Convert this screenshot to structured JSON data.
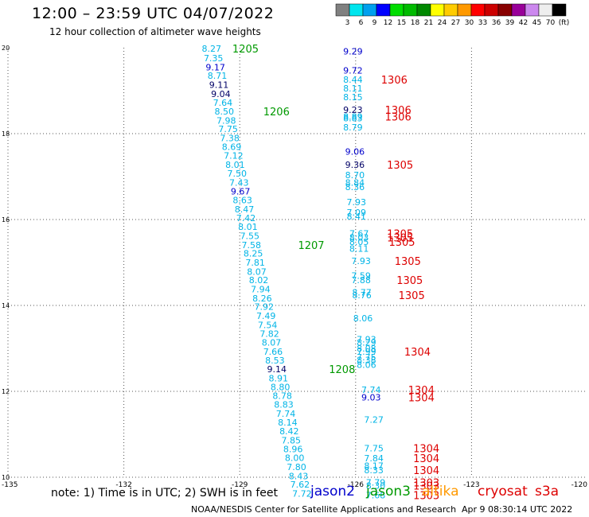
{
  "header": {
    "title": "12:00 – 23:59 UTC 04/07/2022",
    "subtitle": "12 hour collection of altimeter wave heights"
  },
  "colors": {
    "cyan": "#00b4e6",
    "blue": "#0000cc",
    "navy": "#000066",
    "green": "#009900",
    "red": "#dd0000",
    "orange": "#ff9900",
    "grid": "#555555"
  },
  "colorbar": {
    "labels": [
      "3",
      "6",
      "9",
      "12",
      "15",
      "18",
      "21",
      "24",
      "27",
      "30",
      "33",
      "36",
      "39",
      "42",
      "45",
      "70",
      "(ft)"
    ],
    "swatches": [
      "#808080",
      "#00e5ee",
      "#00a0ee",
      "#0000ff",
      "#00dd00",
      "#00bb00",
      "#008800",
      "#ffff00",
      "#ffcc00",
      "#ff9900",
      "#ff0000",
      "#cc0000",
      "#880000",
      "#990099",
      "#cc88ee",
      "#eeeeee",
      "#000000"
    ]
  },
  "footer": {
    "note": "note:  1) Time is in UTC; 2) SWH is in feet",
    "satellites": [
      {
        "name": "jason2",
        "color": "#0000cc"
      },
      {
        "name": "jason3",
        "color": "#009900"
      },
      {
        "name": "altika",
        "color": "#ff9900"
      },
      {
        "name": "cryosat",
        "color": "#dd0000"
      },
      {
        "name": "s3a",
        "color": "#dd0000"
      }
    ],
    "credit": "NOAA/NESDIS Center for Satellite Applications and Research",
    "timestamp": "Apr  9 08:30:14 UTC 2022"
  },
  "chart_data": {
    "type": "scatter",
    "title": "12:00 – 23:59 UTC 04/07/2022",
    "subtitle": "12 hour collection of altimeter wave heights",
    "xlim": [
      -135,
      -120
    ],
    "ylim": [
      10,
      20
    ],
    "x_ticks": [
      {
        "v": -135,
        "label": "-135"
      },
      {
        "v": -132,
        "label": "-132"
      },
      {
        "v": -129,
        "label": "-129"
      },
      {
        "v": -126,
        "label": "-126"
      },
      {
        "v": -123,
        "label": "-123"
      },
      {
        "v": -120,
        "label": "-120"
      }
    ],
    "y_ticks": [
      {
        "v": 10,
        "label": "10"
      },
      {
        "v": 12,
        "label": "12"
      },
      {
        "v": 14,
        "label": "14"
      },
      {
        "v": 16,
        "label": "16"
      },
      {
        "v": 18,
        "label": "18"
      },
      {
        "v": 20,
        "label": "20"
      }
    ],
    "grid": true,
    "points": [
      {
        "x": -129.73,
        "y": 19.98,
        "label": "8.27",
        "c": "cyan"
      },
      {
        "x": -129.68,
        "y": 19.76,
        "label": "7.35",
        "c": "cyan"
      },
      {
        "x": -129.63,
        "y": 19.55,
        "label": "9.17",
        "c": "blue"
      },
      {
        "x": -129.58,
        "y": 19.35,
        "label": "8.71",
        "c": "cyan"
      },
      {
        "x": -129.54,
        "y": 19.14,
        "label": "9.11",
        "c": "navy"
      },
      {
        "x": -129.49,
        "y": 18.93,
        "label": "9.04",
        "c": "navy"
      },
      {
        "x": -129.44,
        "y": 18.72,
        "label": "7.64",
        "c": "cyan"
      },
      {
        "x": -129.4,
        "y": 18.52,
        "label": "8.50",
        "c": "cyan"
      },
      {
        "x": -129.35,
        "y": 18.31,
        "label": "7.98",
        "c": "cyan"
      },
      {
        "x": -129.3,
        "y": 18.11,
        "label": "7.75",
        "c": "cyan"
      },
      {
        "x": -129.26,
        "y": 17.9,
        "label": "7.38",
        "c": "cyan"
      },
      {
        "x": -129.21,
        "y": 17.69,
        "label": "8.69",
        "c": "cyan"
      },
      {
        "x": -129.16,
        "y": 17.49,
        "label": "7.12",
        "c": "cyan"
      },
      {
        "x": -129.12,
        "y": 17.28,
        "label": "8.01",
        "c": "cyan"
      },
      {
        "x": -129.07,
        "y": 17.07,
        "label": "7.50",
        "c": "cyan"
      },
      {
        "x": -129.02,
        "y": 16.86,
        "label": "7.43",
        "c": "cyan"
      },
      {
        "x": -128.98,
        "y": 16.66,
        "label": "9.67",
        "c": "blue"
      },
      {
        "x": -128.93,
        "y": 16.45,
        "label": "8.63",
        "c": "cyan"
      },
      {
        "x": -128.88,
        "y": 16.24,
        "label": "8.47",
        "c": "cyan"
      },
      {
        "x": -128.84,
        "y": 16.04,
        "label": "7.42",
        "c": "cyan"
      },
      {
        "x": -128.79,
        "y": 15.83,
        "label": "8.01",
        "c": "cyan"
      },
      {
        "x": -128.74,
        "y": 15.62,
        "label": "7.55",
        "c": "cyan"
      },
      {
        "x": -128.7,
        "y": 15.41,
        "label": "7.58",
        "c": "cyan"
      },
      {
        "x": -128.65,
        "y": 15.21,
        "label": "8.25",
        "c": "cyan"
      },
      {
        "x": -128.6,
        "y": 15.0,
        "label": "7.81",
        "c": "cyan"
      },
      {
        "x": -128.56,
        "y": 14.79,
        "label": "8.07",
        "c": "cyan"
      },
      {
        "x": -128.51,
        "y": 14.59,
        "label": "8.02",
        "c": "cyan"
      },
      {
        "x": -128.46,
        "y": 14.38,
        "label": "7.94",
        "c": "cyan"
      },
      {
        "x": -128.42,
        "y": 14.17,
        "label": "8.26",
        "c": "cyan"
      },
      {
        "x": -128.37,
        "y": 13.97,
        "label": "7.92",
        "c": "cyan"
      },
      {
        "x": -128.32,
        "y": 13.76,
        "label": "7.49",
        "c": "cyan"
      },
      {
        "x": -128.28,
        "y": 13.55,
        "label": "7.54",
        "c": "cyan"
      },
      {
        "x": -128.23,
        "y": 13.34,
        "label": "7.82",
        "c": "cyan"
      },
      {
        "x": -128.18,
        "y": 13.14,
        "label": "8.07",
        "c": "cyan"
      },
      {
        "x": -128.14,
        "y": 12.93,
        "label": "7.66",
        "c": "cyan"
      },
      {
        "x": -128.09,
        "y": 12.72,
        "label": "8.53",
        "c": "cyan"
      },
      {
        "x": -128.04,
        "y": 12.52,
        "label": "9.14",
        "c": "navy"
      },
      {
        "x": -128.0,
        "y": 12.31,
        "label": "8.91",
        "c": "cyan"
      },
      {
        "x": -127.95,
        "y": 12.1,
        "label": "8.80",
        "c": "cyan"
      },
      {
        "x": -127.9,
        "y": 11.9,
        "label": "8.78",
        "c": "cyan"
      },
      {
        "x": -127.86,
        "y": 11.69,
        "label": "8.83",
        "c": "cyan"
      },
      {
        "x": -127.81,
        "y": 11.48,
        "label": "7.74",
        "c": "cyan"
      },
      {
        "x": -127.76,
        "y": 11.28,
        "label": "8.14",
        "c": "cyan"
      },
      {
        "x": -127.72,
        "y": 11.07,
        "label": "8.42",
        "c": "cyan"
      },
      {
        "x": -127.67,
        "y": 10.86,
        "label": "7.85",
        "c": "cyan"
      },
      {
        "x": -127.62,
        "y": 10.66,
        "label": "8.96",
        "c": "cyan"
      },
      {
        "x": -127.58,
        "y": 10.45,
        "label": "8.00",
        "c": "cyan"
      },
      {
        "x": -127.53,
        "y": 10.24,
        "label": "7.80",
        "c": "cyan"
      },
      {
        "x": -127.48,
        "y": 10.03,
        "label": "8.43",
        "c": "cyan"
      },
      {
        "x": -127.44,
        "y": 9.83,
        "label": "7.62",
        "c": "cyan"
      },
      {
        "x": -127.39,
        "y": 9.62,
        "label": "7.72",
        "c": "cyan"
      },
      {
        "x": -126.07,
        "y": 19.92,
        "label": "9.29",
        "c": "blue"
      },
      {
        "x": -126.07,
        "y": 19.47,
        "label": "9.72",
        "c": "blue"
      },
      {
        "x": -126.07,
        "y": 19.26,
        "label": "8.44",
        "c": "cyan"
      },
      {
        "x": -126.07,
        "y": 19.06,
        "label": "8.11",
        "c": "cyan"
      },
      {
        "x": -126.07,
        "y": 18.85,
        "label": "8.15",
        "c": "cyan"
      },
      {
        "x": -126.07,
        "y": 18.56,
        "label": "9.23",
        "c": "navy"
      },
      {
        "x": -126.07,
        "y": 18.4,
        "label": "8.89",
        "c": "cyan"
      },
      {
        "x": -126.07,
        "y": 18.36,
        "label": "8.83",
        "c": "cyan"
      },
      {
        "x": -126.07,
        "y": 18.15,
        "label": "8.79",
        "c": "cyan"
      },
      {
        "x": -126.02,
        "y": 17.58,
        "label": "9.06",
        "c": "blue"
      },
      {
        "x": -126.02,
        "y": 17.28,
        "label": "9.36",
        "c": "navy"
      },
      {
        "x": -126.02,
        "y": 17.04,
        "label": "8.70",
        "c": "cyan"
      },
      {
        "x": -126.02,
        "y": 16.86,
        "label": "8.84",
        "c": "cyan"
      },
      {
        "x": -126.02,
        "y": 16.76,
        "label": "8.36",
        "c": "cyan"
      },
      {
        "x": -125.98,
        "y": 16.41,
        "label": "7.93",
        "c": "cyan"
      },
      {
        "x": -125.98,
        "y": 16.17,
        "label": "7.09",
        "c": "cyan"
      },
      {
        "x": -125.98,
        "y": 16.07,
        "label": "8.41",
        "c": "cyan"
      },
      {
        "x": -125.91,
        "y": 15.68,
        "label": "7.67",
        "c": "cyan"
      },
      {
        "x": -125.91,
        "y": 15.58,
        "label": "8.03",
        "c": "cyan"
      },
      {
        "x": -125.91,
        "y": 15.48,
        "label": "8.05",
        "c": "cyan"
      },
      {
        "x": -125.91,
        "y": 15.32,
        "label": "8.11",
        "c": "cyan"
      },
      {
        "x": -125.86,
        "y": 15.04,
        "label": "7.93",
        "c": "cyan"
      },
      {
        "x": -125.86,
        "y": 14.69,
        "label": "7.59",
        "c": "cyan"
      },
      {
        "x": -125.86,
        "y": 14.59,
        "label": "7.88",
        "c": "cyan"
      },
      {
        "x": -125.84,
        "y": 14.31,
        "label": "8.77",
        "c": "cyan"
      },
      {
        "x": -125.84,
        "y": 14.24,
        "label": "8.76",
        "c": "cyan"
      },
      {
        "x": -125.81,
        "y": 13.7,
        "label": "8.06",
        "c": "cyan"
      },
      {
        "x": -125.72,
        "y": 13.21,
        "label": "7.93",
        "c": "cyan"
      },
      {
        "x": -125.72,
        "y": 13.14,
        "label": "8.29",
        "c": "cyan"
      },
      {
        "x": -125.72,
        "y": 13.0,
        "label": "8.08",
        "c": "cyan"
      },
      {
        "x": -125.72,
        "y": 12.93,
        "label": "7.99",
        "c": "cyan"
      },
      {
        "x": -125.72,
        "y": 12.8,
        "label": "7.75",
        "c": "cyan"
      },
      {
        "x": -125.72,
        "y": 12.73,
        "label": "8.38",
        "c": "cyan"
      },
      {
        "x": -125.72,
        "y": 12.62,
        "label": "8.06",
        "c": "cyan"
      },
      {
        "x": -125.6,
        "y": 12.04,
        "label": "7.74",
        "c": "cyan"
      },
      {
        "x": -125.6,
        "y": 11.86,
        "label": "9.03",
        "c": "blue"
      },
      {
        "x": -125.53,
        "y": 11.34,
        "label": "7.27",
        "c": "cyan"
      },
      {
        "x": -125.53,
        "y": 10.68,
        "label": "7.75",
        "c": "cyan"
      },
      {
        "x": -125.53,
        "y": 10.44,
        "label": "7.84",
        "c": "cyan"
      },
      {
        "x": -125.53,
        "y": 10.27,
        "label": "8.17",
        "c": "cyan"
      },
      {
        "x": -125.53,
        "y": 10.17,
        "label": "8.33",
        "c": "cyan"
      },
      {
        "x": -125.48,
        "y": 9.88,
        "label": "7.79",
        "c": "cyan"
      },
      {
        "x": -125.48,
        "y": 9.81,
        "label": "8.30",
        "c": "cyan"
      },
      {
        "x": -125.48,
        "y": 9.58,
        "label": "7.68",
        "c": "cyan"
      }
    ],
    "track_labels": [
      {
        "x": -128.85,
        "y": 19.98,
        "label": "1205",
        "c": "green"
      },
      {
        "x": -128.05,
        "y": 18.52,
        "label": "1206",
        "c": "green"
      },
      {
        "x": -127.15,
        "y": 15.41,
        "label": "1207",
        "c": "green"
      },
      {
        "x": -126.35,
        "y": 12.52,
        "label": "1208",
        "c": "green"
      },
      {
        "x": -125.0,
        "y": 19.26,
        "label": "1306",
        "c": "red"
      },
      {
        "x": -124.9,
        "y": 18.56,
        "label": "1306",
        "c": "red"
      },
      {
        "x": -124.9,
        "y": 18.4,
        "label": "1306",
        "c": "red"
      },
      {
        "x": -124.85,
        "y": 17.28,
        "label": "1305",
        "c": "red"
      },
      {
        "x": -124.85,
        "y": 15.68,
        "label": "1305",
        "c": "red"
      },
      {
        "x": -124.85,
        "y": 15.58,
        "label": "1305",
        "c": "red"
      },
      {
        "x": -124.8,
        "y": 15.48,
        "label": "1305",
        "c": "red"
      },
      {
        "x": -124.65,
        "y": 15.04,
        "label": "1305",
        "c": "red"
      },
      {
        "x": -124.6,
        "y": 14.59,
        "label": "1305",
        "c": "red"
      },
      {
        "x": -124.55,
        "y": 14.24,
        "label": "1305",
        "c": "red"
      },
      {
        "x": -124.4,
        "y": 12.93,
        "label": "1304",
        "c": "red"
      },
      {
        "x": -124.3,
        "y": 12.04,
        "label": "1304",
        "c": "red"
      },
      {
        "x": -124.3,
        "y": 11.86,
        "label": "1304",
        "c": "red"
      },
      {
        "x": -124.17,
        "y": 10.68,
        "label": "1304",
        "c": "red"
      },
      {
        "x": -124.17,
        "y": 10.44,
        "label": "1304",
        "c": "red"
      },
      {
        "x": -124.17,
        "y": 10.17,
        "label": "1304",
        "c": "red"
      },
      {
        "x": -124.17,
        "y": 9.88,
        "label": "1303",
        "c": "red"
      },
      {
        "x": -124.17,
        "y": 9.81,
        "label": "1303",
        "c": "red"
      },
      {
        "x": -124.17,
        "y": 9.58,
        "label": "1303",
        "c": "red"
      }
    ]
  }
}
